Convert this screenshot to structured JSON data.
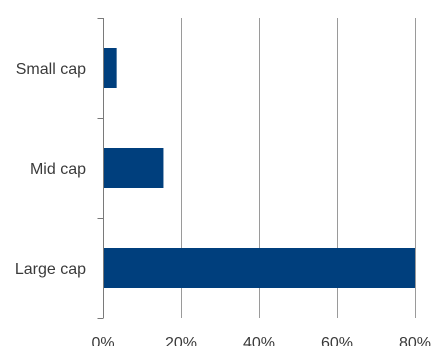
{
  "chart_data": {
    "type": "bar",
    "orientation": "horizontal",
    "categories": [
      "Small cap",
      "Mid cap",
      "Large cap"
    ],
    "values": [
      3.5,
      15.5,
      80
    ],
    "xlim": [
      0,
      80
    ],
    "x_ticks": [
      0,
      20,
      40,
      60,
      80
    ],
    "x_tick_labels": [
      "0%",
      "20%",
      "40%",
      "60%",
      "80%"
    ],
    "title": "",
    "xlabel": "",
    "ylabel": "",
    "grid": "vertical",
    "legend": "none",
    "bar_color": "#003f7d",
    "grid_color": "#9a9a9a"
  }
}
